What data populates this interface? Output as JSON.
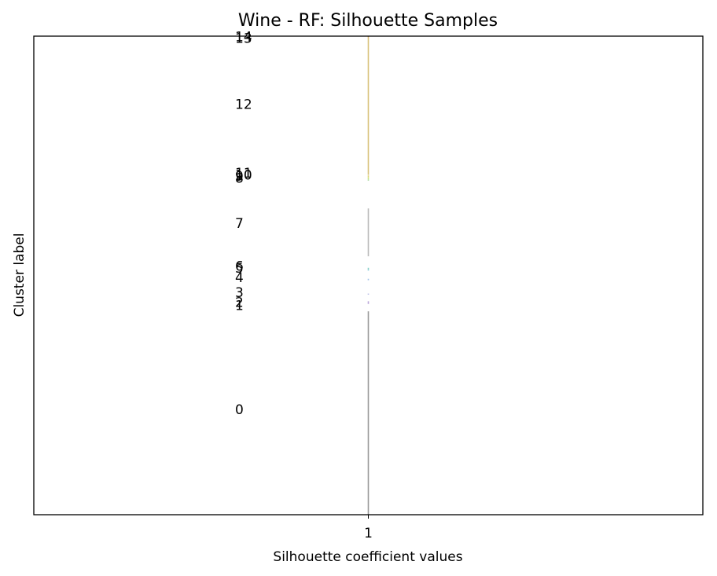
{
  "chart_data": {
    "type": "silhouette",
    "title": "Wine - RF: Silhouette Samples",
    "xlabel": "Silhouette coefficient values",
    "ylabel": "Cluster label",
    "xlim": [
      0.9995,
      1.0005
    ],
    "x_ticks": [
      {
        "value": 1,
        "label": "1"
      }
    ],
    "ylim": [
      0,
      100
    ],
    "grid": false,
    "clusters": [
      {
        "label": "0",
        "y_start": 0.0,
        "y_end": 42.5,
        "y_label": 22.0,
        "value": 1,
        "color": "#9a9a9a"
      },
      {
        "label": "1",
        "y_start": 44.0,
        "y_end": 44.2,
        "y_label": 43.8,
        "value": 1,
        "color": "#c9b4e0"
      },
      {
        "label": "2",
        "y_start": 44.2,
        "y_end": 44.6,
        "y_label": 44.4,
        "value": 1,
        "color": "#b6a3d8"
      },
      {
        "label": "3",
        "y_start": 46.0,
        "y_end": 46.2,
        "y_label": 46.5,
        "value": 1,
        "color": "#aab0e2"
      },
      {
        "label": "4",
        "y_start": 49.0,
        "y_end": 49.3,
        "y_label": 49.6,
        "value": 1,
        "color": "#9fc2e8"
      },
      {
        "label": "5",
        "y_start": 51.0,
        "y_end": 51.2,
        "y_label": 51.6,
        "value": 1,
        "color": "#8fcce0"
      },
      {
        "label": "6",
        "y_start": 51.2,
        "y_end": 51.6,
        "y_label": 52.0,
        "value": 1,
        "color": "#86d0c6"
      },
      {
        "label": "7",
        "y_start": 54.0,
        "y_end": 64.0,
        "y_label": 60.9,
        "value": 1,
        "color": "#b9b9b9"
      },
      {
        "label": "8",
        "y_start": 69.8,
        "y_end": 70.0,
        "y_label": 70.4,
        "value": 1,
        "color": "#a8d8a0"
      },
      {
        "label": "9",
        "y_start": 70.0,
        "y_end": 70.3,
        "y_label": 70.8,
        "value": 1,
        "color": "#bfe08a"
      },
      {
        "label": "10",
        "y_start": 70.3,
        "y_end": 70.6,
        "y_label": 71.0,
        "value": 1,
        "color": "#d6e07c"
      },
      {
        "label": "11",
        "y_start": 70.6,
        "y_end": 70.9,
        "y_label": 71.4,
        "value": 1,
        "color": "#e0d078"
      },
      {
        "label": "12",
        "y_start": 71.0,
        "y_end": 99.6,
        "y_label": 85.8,
        "value": 1,
        "color": "#d8c27a"
      },
      {
        "label": "13",
        "y_start": 99.6,
        "y_end": 99.8,
        "y_label": 99.6,
        "value": 1,
        "color": "#d8b46a"
      },
      {
        "label": "14",
        "y_start": 99.8,
        "y_end": 100.0,
        "y_label": 99.9,
        "value": 1,
        "color": "#d8a860"
      }
    ]
  }
}
